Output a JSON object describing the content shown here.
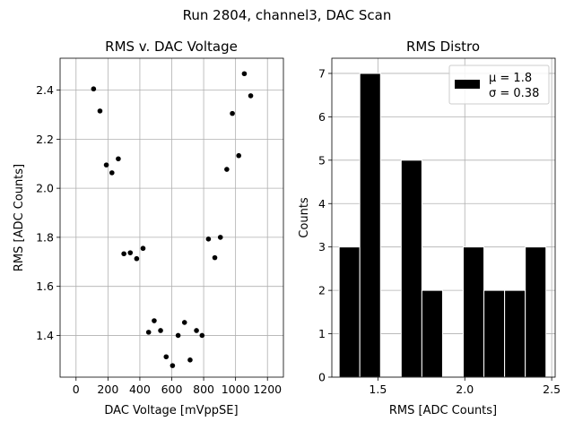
{
  "figure": {
    "suptitle": "Run 2804, channel3, DAC Scan"
  },
  "chart_data": [
    {
      "type": "scatter",
      "title": "RMS v. DAC Voltage",
      "xlabel": "DAC Voltage [mVppSE]",
      "ylabel": "RMS [ADC Counts]",
      "xlim": [
        -100,
        1300
      ],
      "ylim": [
        1.23,
        2.53
      ],
      "xticks": [
        0,
        200,
        400,
        600,
        800,
        1000,
        1200
      ],
      "xtick_labels": [
        "0",
        "200",
        "400",
        "600",
        "800",
        "1000",
        "1200"
      ],
      "yticks": [
        1.4,
        1.6,
        1.8,
        2.0,
        2.2,
        2.4
      ],
      "ytick_labels": [
        "1.4",
        "1.6",
        "1.8",
        "2.0",
        "2.2",
        "2.4"
      ],
      "grid": true,
      "marker_color": "#000000",
      "points": [
        {
          "x": 110,
          "y": 2.405
        },
        {
          "x": 150,
          "y": 2.315
        },
        {
          "x": 190,
          "y": 2.095
        },
        {
          "x": 225,
          "y": 2.063
        },
        {
          "x": 265,
          "y": 2.12
        },
        {
          "x": 300,
          "y": 1.733
        },
        {
          "x": 340,
          "y": 1.737
        },
        {
          "x": 380,
          "y": 1.713
        },
        {
          "x": 420,
          "y": 1.755
        },
        {
          "x": 455,
          "y": 1.413
        },
        {
          "x": 490,
          "y": 1.46
        },
        {
          "x": 530,
          "y": 1.42
        },
        {
          "x": 565,
          "y": 1.313
        },
        {
          "x": 605,
          "y": 1.277
        },
        {
          "x": 640,
          "y": 1.4
        },
        {
          "x": 680,
          "y": 1.453
        },
        {
          "x": 715,
          "y": 1.3
        },
        {
          "x": 755,
          "y": 1.42
        },
        {
          "x": 790,
          "y": 1.4
        },
        {
          "x": 830,
          "y": 1.793
        },
        {
          "x": 870,
          "y": 1.717
        },
        {
          "x": 905,
          "y": 1.8
        },
        {
          "x": 945,
          "y": 2.077
        },
        {
          "x": 980,
          "y": 2.305
        },
        {
          "x": 1020,
          "y": 2.133
        },
        {
          "x": 1055,
          "y": 2.467
        },
        {
          "x": 1095,
          "y": 2.377
        }
      ]
    },
    {
      "type": "bar",
      "title": "RMS Distro",
      "xlabel": "RMS [ADC Counts]",
      "ylabel": "Counts",
      "xlim": [
        1.235,
        2.52
      ],
      "ylim": [
        0,
        7.35
      ],
      "xticks": [
        1.5,
        2.0,
        2.5
      ],
      "xtick_labels": [
        "1.5",
        "2.0",
        "2.5"
      ],
      "yticks": [
        0,
        1,
        2,
        3,
        4,
        5,
        6,
        7
      ],
      "ytick_labels": [
        "0",
        "1",
        "2",
        "3",
        "4",
        "5",
        "6",
        "7"
      ],
      "grid": true,
      "bar_color": "#000000",
      "bins": [
        {
          "x0": 1.277,
          "x1": 1.396,
          "count": 3
        },
        {
          "x0": 1.396,
          "x1": 1.515,
          "count": 7
        },
        {
          "x0": 1.515,
          "x1": 1.634,
          "count": 0
        },
        {
          "x0": 1.634,
          "x1": 1.753,
          "count": 5
        },
        {
          "x0": 1.753,
          "x1": 1.872,
          "count": 2
        },
        {
          "x0": 1.872,
          "x1": 1.991,
          "count": 0
        },
        {
          "x0": 1.991,
          "x1": 2.11,
          "count": 3
        },
        {
          "x0": 2.11,
          "x1": 2.229,
          "count": 2
        },
        {
          "x0": 2.229,
          "x1": 2.348,
          "count": 2
        },
        {
          "x0": 2.348,
          "x1": 2.467,
          "count": 3
        }
      ],
      "legend": {
        "placement": "top-right",
        "line1": "μ = 1.8",
        "line2": "σ = 0.38"
      }
    }
  ]
}
